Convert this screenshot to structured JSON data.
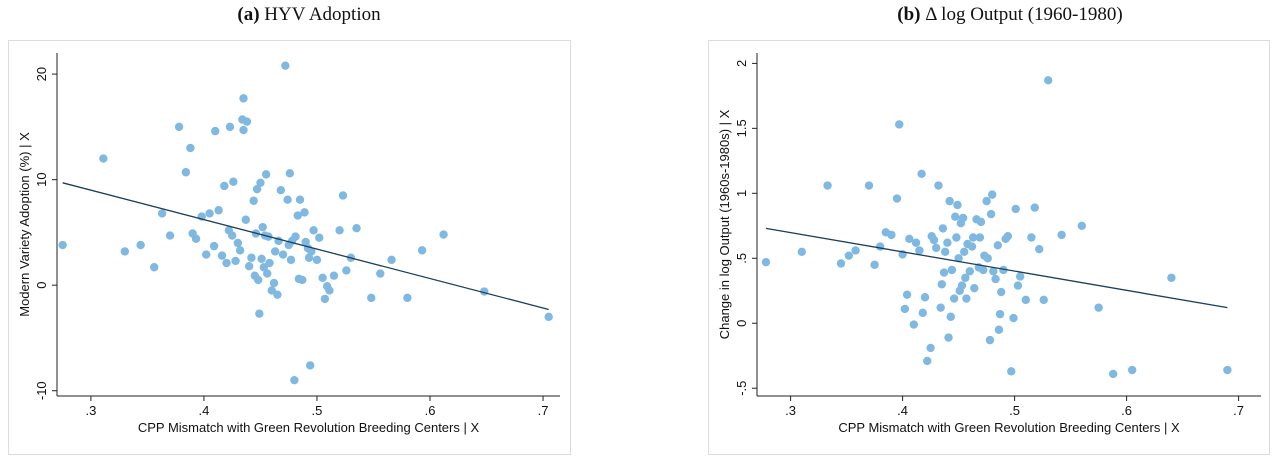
{
  "panels": [
    {
      "tag": "(a)",
      "title": "HYV Adoption"
    },
    {
      "tag": "(b)",
      "title": "Δ log Output (1960-1980)"
    }
  ],
  "chart_data": [
    {
      "type": "scatter",
      "title": "(a) HYV Adoption",
      "xlabel": "CPP Mismatch with Green Revolution Breeding Centers | X",
      "ylabel": "Modern Variety Adoption (%) | X",
      "xlim": [
        0.27,
        0.715
      ],
      "ylim": [
        -10.5,
        22
      ],
      "xticks": [
        ".3",
        ".4",
        ".5",
        ".6",
        ".7"
      ],
      "xtick_values": [
        0.3,
        0.4,
        0.5,
        0.6,
        0.7
      ],
      "yticks": [
        "-10",
        "0",
        "10",
        "20"
      ],
      "ytick_values": [
        -10,
        0,
        10,
        20
      ],
      "grid": false,
      "marker_color": "#7fb8e0",
      "line_color": "#1b3f5c",
      "fit_line": {
        "x": [
          0.275,
          0.705
        ],
        "y": [
          9.7,
          -2.3
        ]
      },
      "points": [
        [
          0.275,
          3.8
        ],
        [
          0.311,
          12.0
        ],
        [
          0.33,
          3.2
        ],
        [
          0.344,
          3.8
        ],
        [
          0.356,
          1.7
        ],
        [
          0.363,
          6.8
        ],
        [
          0.37,
          4.7
        ],
        [
          0.378,
          15.0
        ],
        [
          0.384,
          10.7
        ],
        [
          0.388,
          13.0
        ],
        [
          0.39,
          4.9
        ],
        [
          0.393,
          4.4
        ],
        [
          0.398,
          6.5
        ],
        [
          0.402,
          2.9
        ],
        [
          0.405,
          6.8
        ],
        [
          0.409,
          3.7
        ],
        [
          0.41,
          14.6
        ],
        [
          0.413,
          7.1
        ],
        [
          0.416,
          2.8
        ],
        [
          0.418,
          9.4
        ],
        [
          0.42,
          2.1
        ],
        [
          0.422,
          5.2
        ],
        [
          0.423,
          15.0
        ],
        [
          0.425,
          4.7
        ],
        [
          0.426,
          9.8
        ],
        [
          0.428,
          2.3
        ],
        [
          0.43,
          4.0
        ],
        [
          0.432,
          3.3
        ],
        [
          0.434,
          15.7
        ],
        [
          0.435,
          17.7
        ],
        [
          0.435,
          14.7
        ],
        [
          0.437,
          6.2
        ],
        [
          0.438,
          15.5
        ],
        [
          0.44,
          1.8
        ],
        [
          0.442,
          2.6
        ],
        [
          0.444,
          8.0
        ],
        [
          0.445,
          0.9
        ],
        [
          0.446,
          4.9
        ],
        [
          0.447,
          9.1
        ],
        [
          0.448,
          0.5
        ],
        [
          0.449,
          -2.7
        ],
        [
          0.45,
          9.7
        ],
        [
          0.451,
          2.5
        ],
        [
          0.452,
          5.5
        ],
        [
          0.453,
          1.7
        ],
        [
          0.454,
          4.7
        ],
        [
          0.455,
          10.5
        ],
        [
          0.456,
          1.1
        ],
        [
          0.457,
          4.6
        ],
        [
          0.458,
          2.1
        ],
        [
          0.46,
          -0.5
        ],
        [
          0.462,
          0.2
        ],
        [
          0.463,
          3.2
        ],
        [
          0.465,
          -0.9
        ],
        [
          0.466,
          4.2
        ],
        [
          0.468,
          9.0
        ],
        [
          0.47,
          2.9
        ],
        [
          0.472,
          20.8
        ],
        [
          0.474,
          8.1
        ],
        [
          0.475,
          3.8
        ],
        [
          0.476,
          10.6
        ],
        [
          0.477,
          2.4
        ],
        [
          0.478,
          4.2
        ],
        [
          0.48,
          -9.0
        ],
        [
          0.481,
          4.6
        ],
        [
          0.483,
          6.6
        ],
        [
          0.484,
          0.6
        ],
        [
          0.485,
          8.1
        ],
        [
          0.487,
          0.5
        ],
        [
          0.489,
          6.9
        ],
        [
          0.49,
          4.1
        ],
        [
          0.492,
          3.5
        ],
        [
          0.493,
          2.6
        ],
        [
          0.494,
          -7.6
        ],
        [
          0.495,
          3.2
        ],
        [
          0.497,
          5.2
        ],
        [
          0.5,
          2.4
        ],
        [
          0.502,
          4.5
        ],
        [
          0.505,
          0.7
        ],
        [
          0.507,
          -1.3
        ],
        [
          0.509,
          -0.1
        ],
        [
          0.511,
          -0.5
        ],
        [
          0.515,
          0.9
        ],
        [
          0.52,
          5.2
        ],
        [
          0.523,
          8.5
        ],
        [
          0.526,
          1.4
        ],
        [
          0.53,
          2.6
        ],
        [
          0.535,
          5.4
        ],
        [
          0.548,
          -1.2
        ],
        [
          0.556,
          1.1
        ],
        [
          0.566,
          2.4
        ],
        [
          0.58,
          -1.2
        ],
        [
          0.593,
          3.3
        ],
        [
          0.612,
          4.8
        ],
        [
          0.648,
          -0.6
        ],
        [
          0.705,
          -3.0
        ]
      ]
    },
    {
      "type": "scatter",
      "title": "(b) Δ log Output (1960-1980)",
      "xlabel": "CPP Mismatch with Green Revolution Breeding Centers | X",
      "ylabel": "Change in log Output (1960s-1980s) | X",
      "xlim": [
        0.27,
        0.72
      ],
      "ylim": [
        -0.56,
        2.08
      ],
      "xticks": [
        ".3",
        ".4",
        ".5",
        ".6",
        ".7"
      ],
      "xtick_values": [
        0.3,
        0.4,
        0.5,
        0.6,
        0.7
      ],
      "yticks": [
        "-.5",
        "0",
        ".5",
        "1",
        "1.5",
        "2"
      ],
      "ytick_values": [
        -0.5,
        0,
        0.5,
        1,
        1.5,
        2
      ],
      "grid": false,
      "marker_color": "#7fb8e0",
      "line_color": "#1b3f5c",
      "fit_line": {
        "x": [
          0.278,
          0.69
        ],
        "y": [
          0.73,
          0.12
        ]
      },
      "points": [
        [
          0.278,
          0.47
        ],
        [
          0.31,
          0.55
        ],
        [
          0.333,
          1.06
        ],
        [
          0.345,
          0.46
        ],
        [
          0.352,
          0.52
        ],
        [
          0.358,
          0.56
        ],
        [
          0.37,
          1.06
        ],
        [
          0.375,
          0.45
        ],
        [
          0.38,
          0.59
        ],
        [
          0.385,
          0.7
        ],
        [
          0.39,
          0.68
        ],
        [
          0.395,
          0.96
        ],
        [
          0.397,
          1.53
        ],
        [
          0.4,
          0.53
        ],
        [
          0.402,
          0.11
        ],
        [
          0.404,
          0.22
        ],
        [
          0.406,
          0.65
        ],
        [
          0.41,
          -0.01
        ],
        [
          0.412,
          0.62
        ],
        [
          0.415,
          0.56
        ],
        [
          0.417,
          1.15
        ],
        [
          0.418,
          0.08
        ],
        [
          0.42,
          0.2
        ],
        [
          0.422,
          -0.29
        ],
        [
          0.425,
          -0.19
        ],
        [
          0.426,
          0.67
        ],
        [
          0.428,
          0.64
        ],
        [
          0.43,
          0.58
        ],
        [
          0.432,
          1.06
        ],
        [
          0.434,
          0.12
        ],
        [
          0.435,
          0.3
        ],
        [
          0.436,
          0.73
        ],
        [
          0.437,
          0.39
        ],
        [
          0.438,
          0.55
        ],
        [
          0.44,
          0.62
        ],
        [
          0.441,
          -0.11
        ],
        [
          0.442,
          0.94
        ],
        [
          0.443,
          0.05
        ],
        [
          0.444,
          0.41
        ],
        [
          0.446,
          0.19
        ],
        [
          0.447,
          0.82
        ],
        [
          0.448,
          0.66
        ],
        [
          0.449,
          0.91
        ],
        [
          0.45,
          0.5
        ],
        [
          0.451,
          0.25
        ],
        [
          0.452,
          0.77
        ],
        [
          0.453,
          0.29
        ],
        [
          0.454,
          0.81
        ],
        [
          0.455,
          0.55
        ],
        [
          0.456,
          0.35
        ],
        [
          0.457,
          0.19
        ],
        [
          0.458,
          0.61
        ],
        [
          0.46,
          0.4
        ],
        [
          0.462,
          0.59
        ],
        [
          0.463,
          0.66
        ],
        [
          0.464,
          0.27
        ],
        [
          0.466,
          0.8
        ],
        [
          0.468,
          0.43
        ],
        [
          0.469,
          0.66
        ],
        [
          0.47,
          0.78
        ],
        [
          0.472,
          0.41
        ],
        [
          0.473,
          0.52
        ],
        [
          0.475,
          0.94
        ],
        [
          0.476,
          0.5
        ],
        [
          0.478,
          -0.13
        ],
        [
          0.479,
          0.84
        ],
        [
          0.48,
          0.99
        ],
        [
          0.481,
          0.4
        ],
        [
          0.483,
          0.34
        ],
        [
          0.485,
          0.6
        ],
        [
          0.486,
          -0.05
        ],
        [
          0.487,
          0.07
        ],
        [
          0.488,
          0.24
        ],
        [
          0.49,
          0.41
        ],
        [
          0.492,
          0.65
        ],
        [
          0.494,
          0.67
        ],
        [
          0.497,
          -0.37
        ],
        [
          0.499,
          0.04
        ],
        [
          0.501,
          0.88
        ],
        [
          0.503,
          0.29
        ],
        [
          0.505,
          0.36
        ],
        [
          0.51,
          0.18
        ],
        [
          0.515,
          0.66
        ],
        [
          0.518,
          0.89
        ],
        [
          0.522,
          0.57
        ],
        [
          0.526,
          0.18
        ],
        [
          0.53,
          1.87
        ],
        [
          0.542,
          0.68
        ],
        [
          0.56,
          0.75
        ],
        [
          0.575,
          0.12
        ],
        [
          0.588,
          -0.39
        ],
        [
          0.605,
          -0.36
        ],
        [
          0.64,
          0.35
        ],
        [
          0.69,
          -0.36
        ]
      ]
    }
  ]
}
